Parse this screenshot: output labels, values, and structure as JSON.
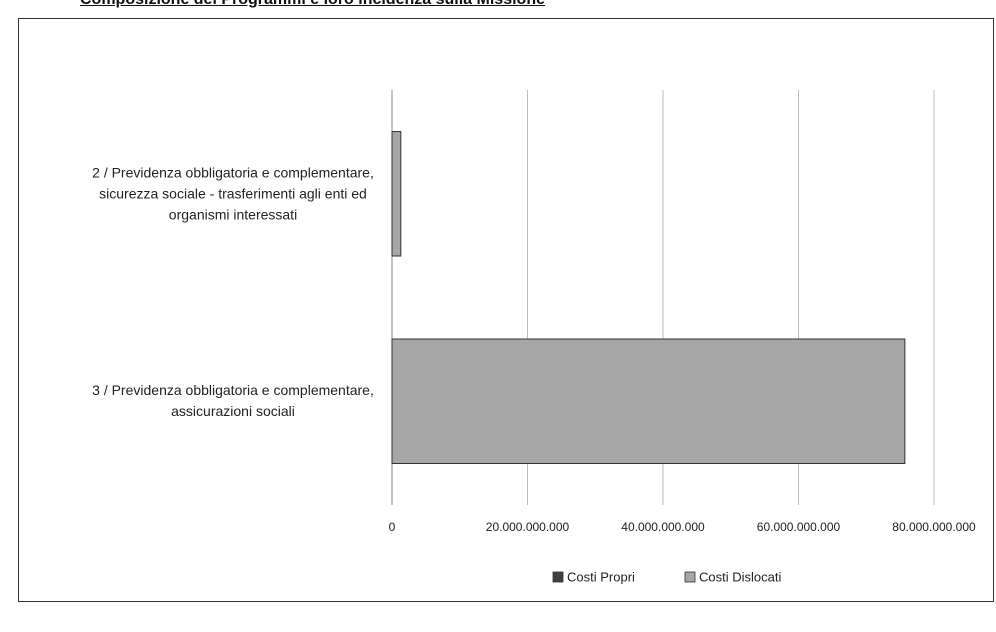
{
  "chart_data": {
    "type": "stacked-barh",
    "title": "Composizione dei Programmi e loro incidenza sulla Missione",
    "categories": [
      "2 / Previdenza obbligatoria e complementare, sicurezza sociale - trasferimenti agli enti ed organismi interessati",
      "3 / Previdenza obbligatoria e complementare, assicurazioni sociali"
    ],
    "series": [
      {
        "name": "Costi Propri",
        "color": "#404040",
        "values": [
          0,
          0
        ]
      },
      {
        "name": "Costi Dislocati",
        "color": "#a6a6a6",
        "values": [
          1300000000,
          75700000000
        ]
      }
    ],
    "xlim": [
      0,
      80000000000
    ],
    "xticks": [
      0,
      {
        "value": 20000000000,
        "label": "20.000.000.000"
      },
      {
        "value": 40000000000,
        "label": "40.000.000.000"
      },
      {
        "value": 60000000000,
        "label": "60.000.000.000"
      },
      {
        "value": 80000000000,
        "label": "80.000.000.000"
      }
    ],
    "grid": true,
    "legend": "bottom"
  }
}
